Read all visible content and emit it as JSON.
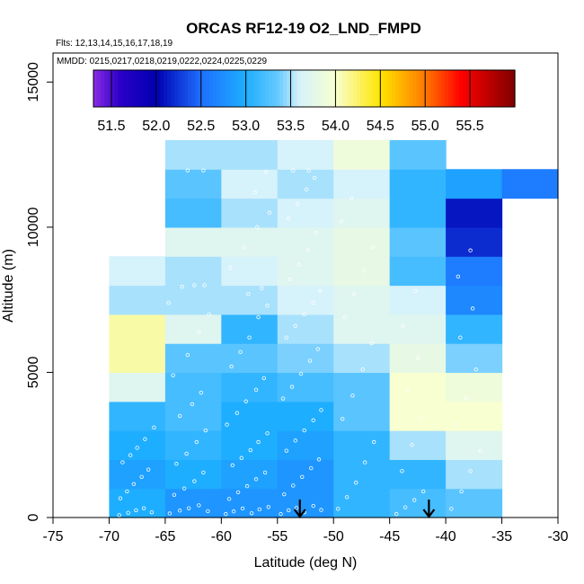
{
  "chart_data": {
    "type": "heatmap",
    "title": "ORCAS RF12-19 O2_LND_FMPD",
    "subtitle_flights": "Flts: 12,13,14,15,16,17,18,19",
    "subtitle_dates": "MMDD: 0215,0217,0218,0219,0222,0224,0225,0229",
    "xlabel": "Latitude (deg N)",
    "ylabel": "Altitude (m)",
    "xlim": [
      -75,
      -30
    ],
    "ylim": [
      0,
      16000
    ],
    "x_ticks": [
      -75,
      -70,
      -65,
      -60,
      -55,
      -50,
      -45,
      -40,
      -35,
      -30
    ],
    "x_tick_labels": [
      "-75",
      "-70",
      "-65",
      "-60",
      "-55",
      "-50",
      "-45",
      "-40",
      "-35",
      "-30"
    ],
    "y_ticks": [
      0,
      5000,
      10000,
      15000
    ],
    "y_tick_labels": [
      "0",
      "5000",
      "10000",
      "15000"
    ],
    "colorbar": {
      "min": 51.3,
      "max": 56.0,
      "tick_values": [
        51.5,
        52.0,
        52.5,
        53.0,
        53.5,
        54.0,
        54.5,
        55.0,
        55.5
      ],
      "tick_labels": [
        "51.5",
        "52.0",
        "52.5",
        "53.0",
        "53.5",
        "54.0",
        "54.5",
        "55.0",
        "55.5"
      ]
    },
    "bin_width_deg": 5,
    "bin_height_m": 1000,
    "columns": [
      {
        "lat_min": -70,
        "cells": [
          [
            0,
            53.0
          ],
          [
            1000,
            52.9
          ],
          [
            2000,
            53.0
          ],
          [
            3000,
            53.1
          ],
          [
            4000,
            53.7
          ],
          [
            5000,
            54.1
          ],
          [
            6000,
            54.1
          ],
          [
            7000,
            53.5
          ],
          [
            8000,
            53.6
          ]
        ]
      },
      {
        "lat_min": -65,
        "cells": [
          [
            0,
            52.8
          ],
          [
            1000,
            53.0
          ],
          [
            2000,
            53.1
          ],
          [
            3000,
            53.2
          ],
          [
            4000,
            53.2
          ],
          [
            5000,
            53.3
          ],
          [
            6000,
            53.7
          ],
          [
            7000,
            53.5
          ],
          [
            8000,
            53.5
          ],
          [
            9000,
            53.7
          ],
          [
            10000,
            53.2
          ],
          [
            11000,
            53.3
          ],
          [
            12000,
            53.5
          ]
        ]
      },
      {
        "lat_min": -60,
        "cells": [
          [
            0,
            52.8
          ],
          [
            1000,
            52.9
          ],
          [
            2000,
            53.0
          ],
          [
            3000,
            53.0
          ],
          [
            4000,
            53.1
          ],
          [
            5000,
            53.3
          ],
          [
            6000,
            53.1
          ],
          [
            7000,
            53.5
          ],
          [
            8000,
            53.6
          ],
          [
            9000,
            53.7
          ],
          [
            10000,
            53.5
          ],
          [
            11000,
            53.6
          ],
          [
            12000,
            53.5
          ]
        ]
      },
      {
        "lat_min": -55,
        "cells": [
          [
            0,
            52.8
          ],
          [
            1000,
            52.8
          ],
          [
            2000,
            52.9
          ],
          [
            3000,
            53.0
          ],
          [
            4000,
            53.2
          ],
          [
            5000,
            53.4
          ],
          [
            6000,
            53.5
          ],
          [
            7000,
            53.6
          ],
          [
            8000,
            53.7
          ],
          [
            9000,
            53.7
          ],
          [
            10000,
            53.6
          ],
          [
            11000,
            53.5
          ],
          [
            12000,
            53.6
          ]
        ]
      },
      {
        "lat_min": -50,
        "cells": [
          [
            0,
            53.1
          ],
          [
            1000,
            53.1
          ],
          [
            2000,
            53.1
          ],
          [
            3000,
            53.3
          ],
          [
            4000,
            53.3
          ],
          [
            5000,
            53.5
          ],
          [
            6000,
            53.7
          ],
          [
            7000,
            53.7
          ],
          [
            8000,
            53.8
          ],
          [
            9000,
            53.8
          ],
          [
            10000,
            53.7
          ],
          [
            11000,
            53.6
          ],
          [
            12000,
            53.9
          ]
        ]
      },
      {
        "lat_min": -45,
        "cells": [
          [
            0,
            53.2
          ],
          [
            1000,
            53.1
          ],
          [
            2000,
            53.5
          ],
          [
            3000,
            54.0
          ],
          [
            4000,
            54.0
          ],
          [
            5000,
            53.8
          ],
          [
            6000,
            53.7
          ],
          [
            7000,
            53.6
          ],
          [
            8000,
            53.2
          ],
          [
            9000,
            53.3
          ],
          [
            10000,
            53.1
          ],
          [
            11000,
            53.1
          ],
          [
            12000,
            53.3
          ]
        ]
      },
      {
        "lat_min": -40,
        "cells": [
          [
            0,
            53.3
          ],
          [
            1000,
            53.5
          ],
          [
            2000,
            53.7
          ],
          [
            3000,
            54.0
          ],
          [
            4000,
            53.9
          ],
          [
            5000,
            53.4
          ],
          [
            6000,
            53.1
          ],
          [
            7000,
            52.7
          ],
          [
            8000,
            52.6
          ],
          [
            9000,
            52.2
          ],
          [
            10000,
            52.1
          ],
          [
            11000,
            52.9
          ]
        ]
      },
      {
        "lat_min": -35,
        "cells": [
          [
            11000,
            52.6
          ]
        ]
      }
    ],
    "arrows": [
      {
        "lat": -53.0,
        "label": ""
      },
      {
        "lat": -41.5,
        "label": ""
      }
    ],
    "observations": [
      [
        -69.1,
        80
      ],
      [
        -68.3,
        160
      ],
      [
        -67.6,
        250
      ],
      [
        -66.9,
        320
      ],
      [
        -66.2,
        180
      ],
      [
        -69.0,
        660
      ],
      [
        -68.4,
        900
      ],
      [
        -67.8,
        1150
      ],
      [
        -67.1,
        1400
      ],
      [
        -66.5,
        1650
      ],
      [
        -68.8,
        1900
      ],
      [
        -68.1,
        2150
      ],
      [
        -67.5,
        2400
      ],
      [
        -66.8,
        2700
      ],
      [
        -66.0,
        3100
      ],
      [
        -64.6,
        140
      ],
      [
        -63.7,
        240
      ],
      [
        -62.9,
        320
      ],
      [
        -62.0,
        420
      ],
      [
        -61.2,
        220
      ],
      [
        -64.2,
        780
      ],
      [
        -63.3,
        1000
      ],
      [
        -62.4,
        1250
      ],
      [
        -61.6,
        1550
      ],
      [
        -64.0,
        1850
      ],
      [
        -63.1,
        2200
      ],
      [
        -62.2,
        2600
      ],
      [
        -61.4,
        3000
      ],
      [
        -63.7,
        3500
      ],
      [
        -62.6,
        3900
      ],
      [
        -61.8,
        4300
      ],
      [
        -64.3,
        4900
      ],
      [
        -63.0,
        5600
      ],
      [
        -62.0,
        6400
      ],
      [
        -61.1,
        7000
      ],
      [
        -64.7,
        7400
      ],
      [
        -63.5,
        7950
      ],
      [
        -62.4,
        8000
      ],
      [
        -61.5,
        8000
      ],
      [
        -63.0,
        11950
      ],
      [
        -61.6,
        11950
      ],
      [
        -59.6,
        120
      ],
      [
        -58.9,
        210
      ],
      [
        -58.1,
        310
      ],
      [
        -57.3,
        150
      ],
      [
        -56.6,
        280
      ],
      [
        -55.8,
        360
      ],
      [
        -59.3,
        640
      ],
      [
        -58.5,
        870
      ],
      [
        -57.7,
        1080
      ],
      [
        -56.9,
        1320
      ],
      [
        -56.1,
        1550
      ],
      [
        -59.0,
        1800
      ],
      [
        -58.2,
        2050
      ],
      [
        -57.4,
        2320
      ],
      [
        -56.7,
        2600
      ],
      [
        -55.9,
        2900
      ],
      [
        -59.5,
        3200
      ],
      [
        -58.6,
        3600
      ],
      [
        -57.8,
        4000
      ],
      [
        -56.9,
        4400
      ],
      [
        -56.2,
        4800
      ],
      [
        -59.1,
        5200
      ],
      [
        -58.3,
        5700
      ],
      [
        -57.5,
        6200
      ],
      [
        -56.7,
        6900
      ],
      [
        -55.9,
        7300
      ],
      [
        -57.6,
        7700
      ],
      [
        -56.4,
        7900
      ],
      [
        -59.2,
        8600
      ],
      [
        -58.0,
        9300
      ],
      [
        -56.8,
        10000
      ],
      [
        -55.7,
        10500
      ],
      [
        -57.0,
        11200
      ],
      [
        -56.0,
        11900
      ],
      [
        -54.7,
        120
      ],
      [
        -54.0,
        250
      ],
      [
        -53.3,
        330
      ],
      [
        -52.6,
        180
      ],
      [
        -51.8,
        400
      ],
      [
        -51.1,
        260
      ],
      [
        -54.4,
        800
      ],
      [
        -53.6,
        1100
      ],
      [
        -52.8,
        1400
      ],
      [
        -52.0,
        1700
      ],
      [
        -51.3,
        2000
      ],
      [
        -54.2,
        2300
      ],
      [
        -53.4,
        2650
      ],
      [
        -52.6,
        3000
      ],
      [
        -51.8,
        3350
      ],
      [
        -51.1,
        3700
      ],
      [
        -54.5,
        4100
      ],
      [
        -53.7,
        4500
      ],
      [
        -52.9,
        4950
      ],
      [
        -52.1,
        5400
      ],
      [
        -51.4,
        5800
      ],
      [
        -54.2,
        6200
      ],
      [
        -53.4,
        6600
      ],
      [
        -52.6,
        7000
      ],
      [
        -51.8,
        7400
      ],
      [
        -51.2,
        7800
      ],
      [
        -53.9,
        8200
      ],
      [
        -53.1,
        8700
      ],
      [
        -52.3,
        9200
      ],
      [
        -51.6,
        9800
      ],
      [
        -54.0,
        10300
      ],
      [
        -53.2,
        10800
      ],
      [
        -52.4,
        11300
      ],
      [
        -51.7,
        11700
      ],
      [
        -53.6,
        11950
      ],
      [
        -52.2,
        11950
      ],
      [
        -49.6,
        300
      ],
      [
        -48.8,
        700
      ],
      [
        -48.0,
        1200
      ],
      [
        -47.2,
        1900
      ],
      [
        -46.4,
        2600
      ],
      [
        -49.2,
        3400
      ],
      [
        -48.3,
        4200
      ],
      [
        -47.4,
        5100
      ],
      [
        -46.6,
        6000
      ],
      [
        -49.0,
        6900
      ],
      [
        -48.2,
        7700
      ],
      [
        -47.3,
        8500
      ],
      [
        -46.5,
        9300
      ],
      [
        -49.3,
        10200
      ],
      [
        -48.4,
        11000
      ],
      [
        -44.4,
        120
      ],
      [
        -43.6,
        350
      ],
      [
        -42.8,
        600
      ],
      [
        -42.0,
        900
      ],
      [
        -43.9,
        1600
      ],
      [
        -43.0,
        2500
      ],
      [
        -42.2,
        3400
      ],
      [
        -43.4,
        4400
      ],
      [
        -42.5,
        5500
      ],
      [
        -43.8,
        6600
      ],
      [
        -42.7,
        7800
      ],
      [
        -39.5,
        300
      ],
      [
        -38.6,
        900
      ],
      [
        -37.8,
        1600
      ],
      [
        -36.9,
        2300
      ],
      [
        -39.1,
        3200
      ],
      [
        -38.2,
        4100
      ],
      [
        -37.3,
        5100
      ],
      [
        -38.7,
        6200
      ],
      [
        -37.6,
        7200
      ],
      [
        -38.9,
        8300
      ],
      [
        -37.8,
        9200
      ]
    ]
  }
}
